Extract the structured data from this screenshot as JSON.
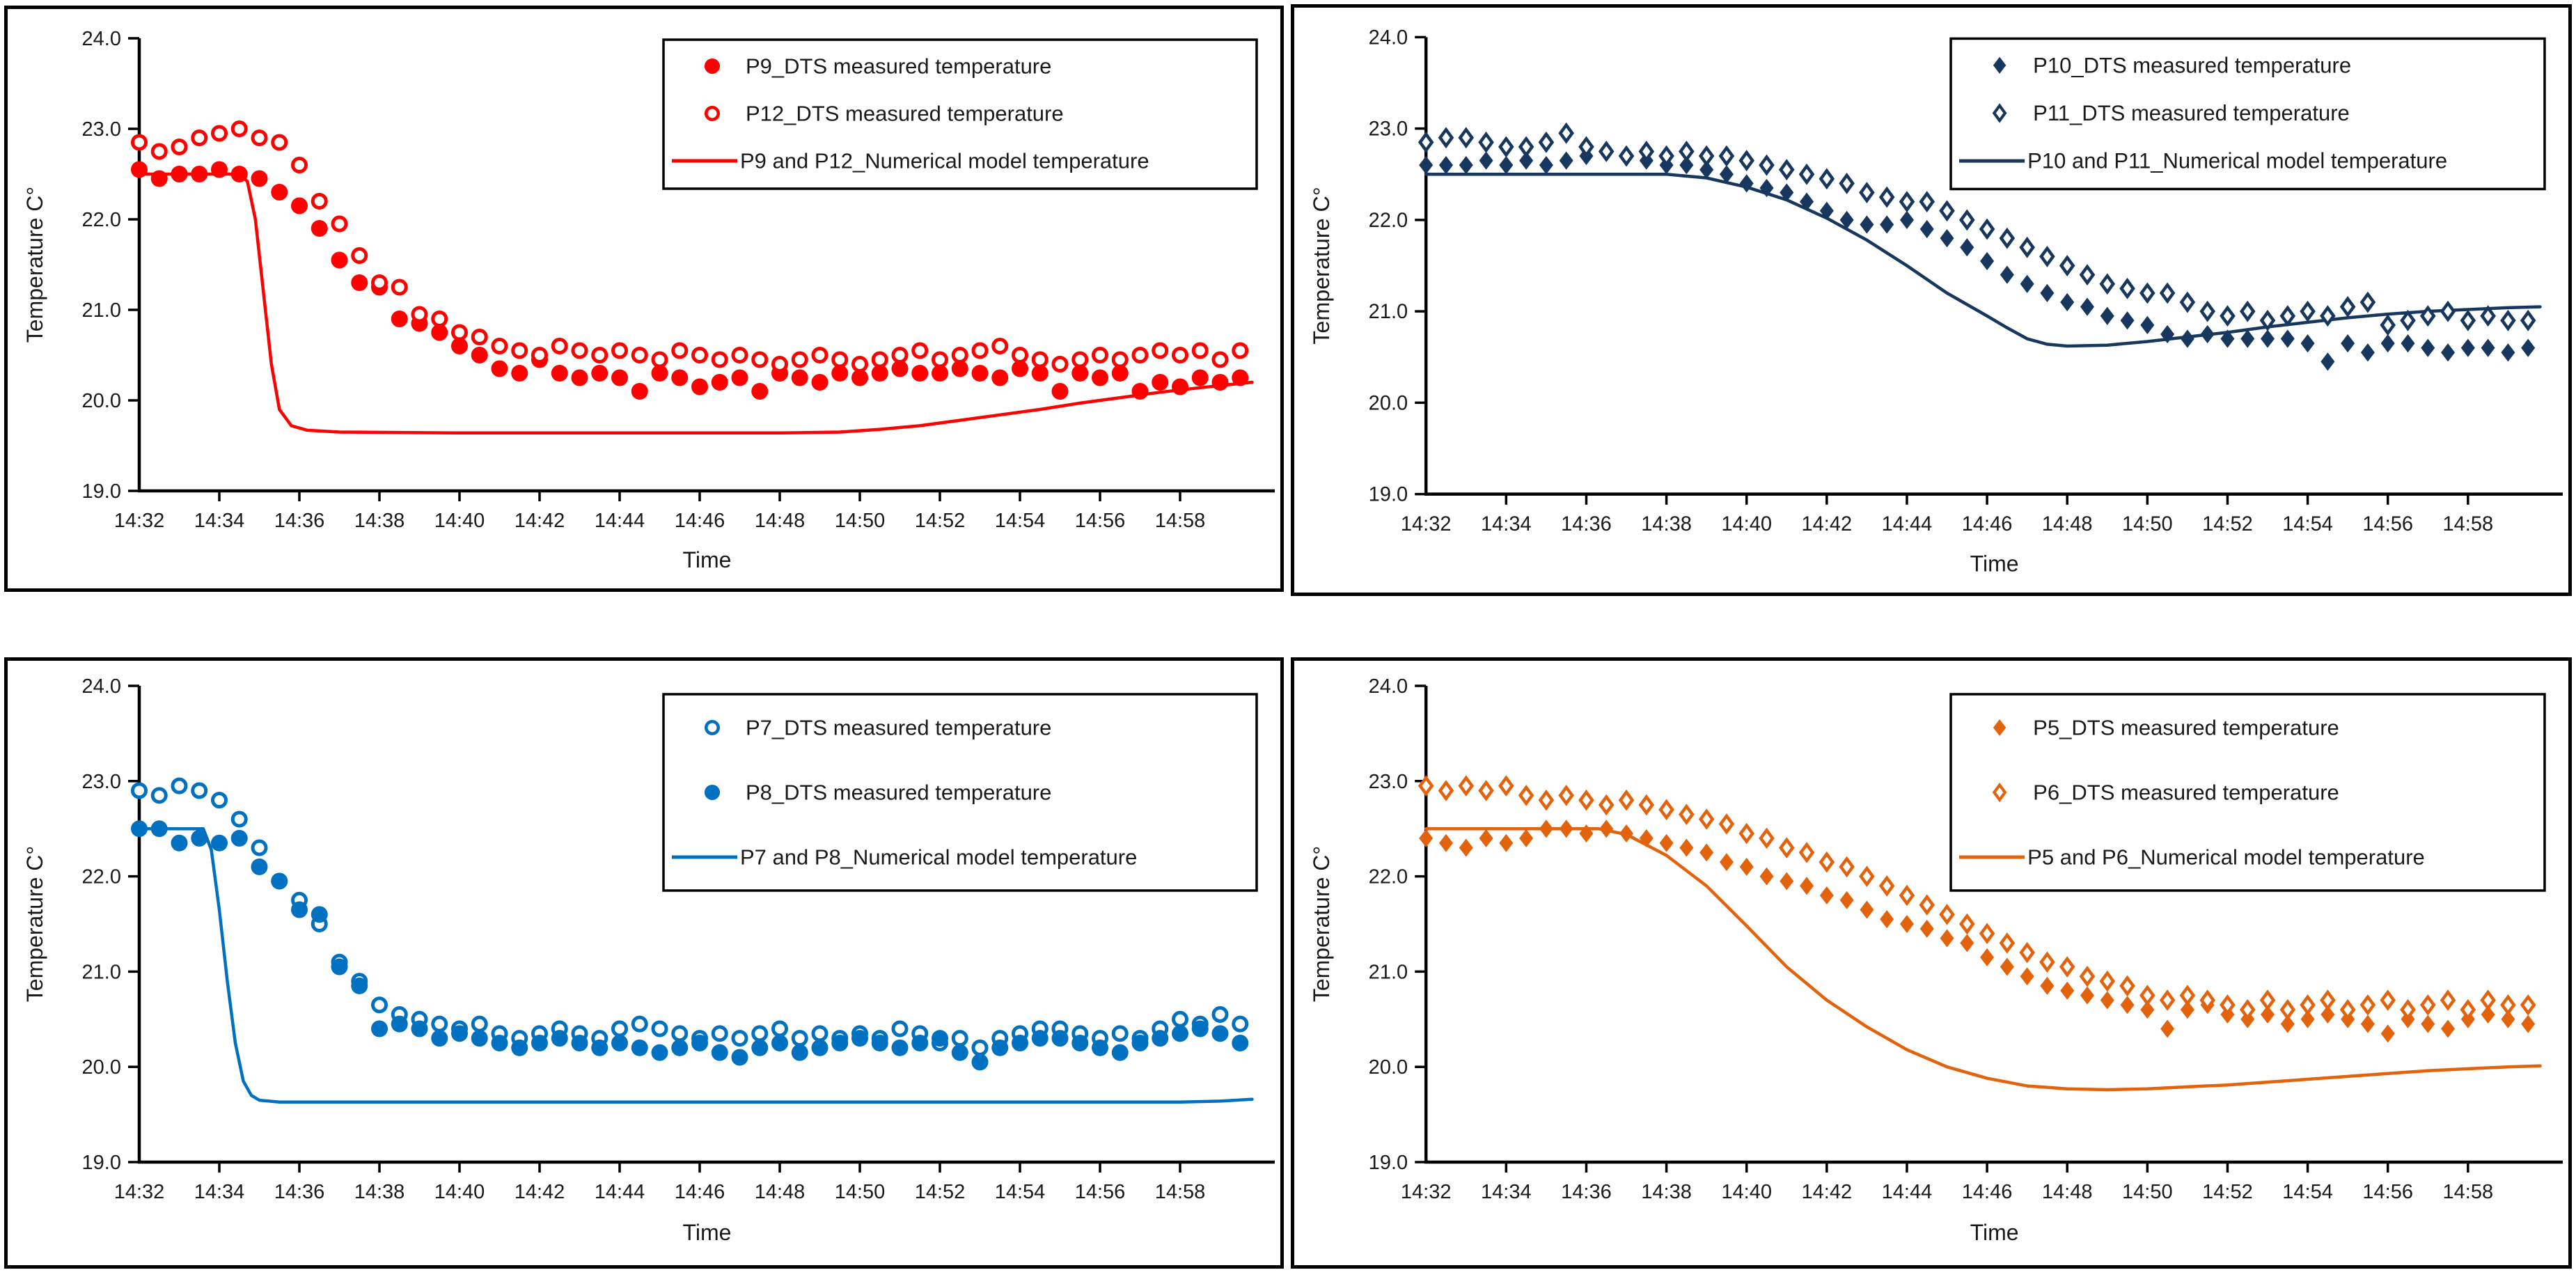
{
  "figure": {
    "background": "#FFFFFF",
    "x_axis_title": "Time",
    "y_axis_title": "Temperature C°",
    "x_tick_labels": [
      "14:32",
      "14:34",
      "14:36",
      "14:38",
      "14:40",
      "14:42",
      "14:44",
      "14:46",
      "14:48",
      "14:50",
      "14:52",
      "14:54",
      "14:56",
      "14:58"
    ],
    "y_tick_labels": [
      "19.0",
      "20.0",
      "21.0",
      "22.0",
      "23.0",
      "24.0"
    ],
    "ylim": [
      19.0,
      24.0
    ],
    "x_tick_interval_minutes": 2,
    "x_start_minutes": 0,
    "sample_step_minutes": 0.5
  },
  "chart_data": [
    {
      "id": "p9-p12",
      "position": "top-left",
      "type": "scatter",
      "marker_shape": "circle",
      "color": "#FF0000",
      "xlabel": "Time",
      "ylabel": "Temperature C°",
      "ylim": [
        19.0,
        24.0
      ],
      "legend_position": "top-right",
      "series": [
        {
          "name": "P9_DTS measured temperature",
          "style": "filled",
          "t_start": 0,
          "t_step": 0.5,
          "values": [
            22.55,
            22.45,
            22.5,
            22.5,
            22.55,
            22.5,
            22.45,
            22.3,
            22.15,
            21.9,
            21.55,
            21.3,
            21.25,
            20.9,
            20.85,
            20.75,
            20.6,
            20.5,
            20.35,
            20.3,
            20.45,
            20.3,
            20.25,
            20.3,
            20.25,
            20.1,
            20.3,
            20.25,
            20.15,
            20.2,
            20.25,
            20.1,
            20.3,
            20.25,
            20.2,
            20.3,
            20.25,
            20.3,
            20.35,
            20.3,
            20.3,
            20.35,
            20.3,
            20.25,
            20.35,
            20.3,
            20.1,
            20.3,
            20.25,
            20.3,
            20.1,
            20.2,
            20.15,
            20.25,
            20.2,
            20.25
          ]
        },
        {
          "name": "P12_DTS measured temperature",
          "style": "open",
          "t_start": 0,
          "t_step": 0.5,
          "values": [
            22.85,
            22.75,
            22.8,
            22.9,
            22.95,
            23.0,
            22.9,
            22.85,
            22.6,
            22.2,
            21.95,
            21.6,
            21.3,
            21.25,
            20.95,
            20.9,
            20.75,
            20.7,
            20.6,
            20.55,
            20.5,
            20.6,
            20.55,
            20.5,
            20.55,
            20.5,
            20.45,
            20.55,
            20.5,
            20.45,
            20.5,
            20.45,
            20.4,
            20.45,
            20.5,
            20.45,
            20.4,
            20.45,
            20.5,
            20.55,
            20.45,
            20.5,
            20.55,
            20.6,
            20.5,
            20.45,
            20.4,
            20.45,
            20.5,
            20.45,
            20.5,
            20.55,
            20.5,
            20.55,
            20.45,
            20.55
          ]
        },
        {
          "name": "P9 and P12_Numerical model temperature",
          "style": "line",
          "points": [
            [
              0,
              22.5
            ],
            [
              2.5,
              22.5
            ],
            [
              2.7,
              22.42
            ],
            [
              2.9,
              22.0
            ],
            [
              3.1,
              21.2
            ],
            [
              3.3,
              20.4
            ],
            [
              3.5,
              19.9
            ],
            [
              3.8,
              19.72
            ],
            [
              4.2,
              19.67
            ],
            [
              5,
              19.65
            ],
            [
              8,
              19.64
            ],
            [
              12,
              19.64
            ],
            [
              16,
              19.64
            ],
            [
              17.5,
              19.65
            ],
            [
              18.5,
              19.68
            ],
            [
              19.5,
              19.72
            ],
            [
              20.5,
              19.78
            ],
            [
              21.5,
              19.84
            ],
            [
              22.5,
              19.9
            ],
            [
              23.5,
              19.97
            ],
            [
              24.5,
              20.03
            ],
            [
              25.5,
              20.09
            ],
            [
              26.5,
              20.14
            ],
            [
              27.8,
              20.2
            ]
          ]
        }
      ]
    },
    {
      "id": "p10-p11",
      "position": "top-right",
      "type": "scatter",
      "marker_shape": "diamond",
      "color": "#17375E",
      "xlabel": "Time",
      "ylabel": "Temperature C°",
      "ylim": [
        19.0,
        24.0
      ],
      "legend_position": "top-right",
      "series": [
        {
          "name": "P10_DTS measured temperature",
          "style": "filled",
          "t_start": 0,
          "t_step": 0.5,
          "values": [
            22.6,
            22.6,
            22.6,
            22.65,
            22.6,
            22.65,
            22.6,
            22.65,
            22.7,
            22.75,
            22.7,
            22.65,
            22.6,
            22.6,
            22.55,
            22.5,
            22.4,
            22.35,
            22.3,
            22.2,
            22.1,
            22.0,
            21.95,
            21.95,
            22.0,
            21.9,
            21.8,
            21.7,
            21.55,
            21.4,
            21.3,
            21.2,
            21.1,
            21.05,
            20.95,
            20.9,
            20.85,
            20.75,
            20.7,
            20.75,
            20.7,
            20.7,
            20.7,
            20.7,
            20.65,
            20.45,
            20.65,
            20.55,
            20.65,
            20.65,
            20.6,
            20.55,
            20.6,
            20.6,
            20.55,
            20.6
          ]
        },
        {
          "name": "P11_DTS measured temperature",
          "style": "open",
          "t_start": 0,
          "t_step": 0.5,
          "values": [
            22.85,
            22.9,
            22.9,
            22.85,
            22.8,
            22.8,
            22.85,
            22.95,
            22.8,
            22.75,
            22.7,
            22.75,
            22.7,
            22.75,
            22.7,
            22.7,
            22.65,
            22.6,
            22.55,
            22.5,
            22.45,
            22.4,
            22.3,
            22.25,
            22.2,
            22.2,
            22.1,
            22.0,
            21.9,
            21.8,
            21.7,
            21.6,
            21.5,
            21.4,
            21.3,
            21.25,
            21.2,
            21.2,
            21.1,
            21.0,
            20.95,
            21.0,
            20.9,
            20.95,
            21.0,
            20.95,
            21.05,
            21.1,
            20.85,
            20.9,
            20.95,
            21.0,
            20.9,
            20.95,
            20.9,
            20.9
          ]
        },
        {
          "name": "P10 and P11_Numerical model temperature",
          "style": "line",
          "points": [
            [
              0,
              22.5
            ],
            [
              6,
              22.5
            ],
            [
              7,
              22.46
            ],
            [
              8,
              22.36
            ],
            [
              9,
              22.22
            ],
            [
              10,
              22.02
            ],
            [
              11,
              21.78
            ],
            [
              12,
              21.5
            ],
            [
              13,
              21.2
            ],
            [
              14,
              20.95
            ],
            [
              14.5,
              20.82
            ],
            [
              15,
              20.7
            ],
            [
              15.5,
              20.64
            ],
            [
              16,
              20.62
            ],
            [
              17,
              20.63
            ],
            [
              18,
              20.67
            ],
            [
              19,
              20.72
            ],
            [
              20,
              20.77
            ],
            [
              21,
              20.83
            ],
            [
              22,
              20.88
            ],
            [
              23,
              20.93
            ],
            [
              24,
              20.97
            ],
            [
              25,
              21.0
            ],
            [
              26,
              21.02
            ],
            [
              27,
              21.04
            ],
            [
              27.8,
              21.05
            ]
          ]
        }
      ]
    },
    {
      "id": "p7-p8",
      "position": "bottom-left",
      "type": "scatter",
      "marker_shape": "circle",
      "color": "#0070C0",
      "xlabel": "Time",
      "ylabel": "Temperature C°",
      "ylim": [
        19.0,
        24.0
      ],
      "legend_position": "top-right",
      "series": [
        {
          "name": "P7_DTS measured temperature",
          "style": "open",
          "t_start": 0,
          "t_step": 0.5,
          "values": [
            22.9,
            22.85,
            22.95,
            22.9,
            22.8,
            22.6,
            22.3,
            21.95,
            21.75,
            21.5,
            21.1,
            20.9,
            20.65,
            20.55,
            20.5,
            20.45,
            20.4,
            20.45,
            20.35,
            20.3,
            20.35,
            20.4,
            20.35,
            20.3,
            20.4,
            20.45,
            20.4,
            20.35,
            20.3,
            20.35,
            20.3,
            20.35,
            20.4,
            20.3,
            20.35,
            20.3,
            20.35,
            20.3,
            20.4,
            20.35,
            20.25,
            20.3,
            20.2,
            20.3,
            20.35,
            20.4,
            20.4,
            20.35,
            20.3,
            20.35,
            20.3,
            20.4,
            20.5,
            20.45,
            20.55,
            20.45
          ]
        },
        {
          "name": "P8_DTS measured temperature",
          "style": "filled",
          "t_start": 0,
          "t_step": 0.5,
          "values": [
            22.5,
            22.5,
            22.35,
            22.4,
            22.35,
            22.4,
            22.1,
            21.95,
            21.65,
            21.6,
            21.05,
            20.85,
            20.4,
            20.45,
            20.4,
            20.3,
            20.35,
            20.3,
            20.25,
            20.2,
            20.25,
            20.3,
            20.25,
            20.2,
            20.25,
            20.2,
            20.15,
            20.2,
            20.25,
            20.15,
            20.1,
            20.2,
            20.25,
            20.15,
            20.2,
            20.25,
            20.3,
            20.25,
            20.2,
            20.25,
            20.3,
            20.15,
            20.05,
            20.2,
            20.25,
            20.3,
            20.3,
            20.25,
            20.2,
            20.15,
            20.25,
            20.3,
            20.35,
            20.4,
            20.35,
            20.25
          ]
        },
        {
          "name": "P7 and P8_Numerical model temperature",
          "style": "line",
          "points": [
            [
              0,
              22.5
            ],
            [
              1.6,
              22.5
            ],
            [
              1.8,
              22.28
            ],
            [
              2.0,
              21.65
            ],
            [
              2.2,
              20.9
            ],
            [
              2.4,
              20.25
            ],
            [
              2.6,
              19.85
            ],
            [
              2.8,
              19.7
            ],
            [
              3.0,
              19.65
            ],
            [
              3.5,
              19.63
            ],
            [
              8,
              19.63
            ],
            [
              14,
              19.63
            ],
            [
              20,
              19.63
            ],
            [
              26,
              19.63
            ],
            [
              27,
              19.64
            ],
            [
              27.8,
              19.66
            ]
          ]
        }
      ]
    },
    {
      "id": "p5-p6",
      "position": "bottom-right",
      "type": "scatter",
      "marker_shape": "diamond",
      "color": "#E3620C",
      "xlabel": "Time",
      "ylabel": "Temperature C°",
      "ylim": [
        19.0,
        24.0
      ],
      "legend_position": "top-right",
      "series": [
        {
          "name": "P5_DTS measured temperature",
          "style": "filled",
          "t_start": 0,
          "t_step": 0.5,
          "values": [
            22.4,
            22.35,
            22.3,
            22.4,
            22.35,
            22.4,
            22.5,
            22.5,
            22.45,
            22.5,
            22.45,
            22.4,
            22.35,
            22.3,
            22.25,
            22.15,
            22.1,
            22.0,
            21.95,
            21.9,
            21.8,
            21.75,
            21.65,
            21.55,
            21.5,
            21.45,
            21.35,
            21.3,
            21.15,
            21.05,
            20.95,
            20.85,
            20.8,
            20.75,
            20.7,
            20.65,
            20.6,
            20.4,
            20.6,
            20.65,
            20.55,
            20.5,
            20.55,
            20.45,
            20.5,
            20.55,
            20.5,
            20.45,
            20.35,
            20.5,
            20.45,
            20.4,
            20.5,
            20.55,
            20.5,
            20.45
          ]
        },
        {
          "name": "P6_DTS measured temperature",
          "style": "open",
          "t_start": 0,
          "t_step": 0.5,
          "values": [
            22.95,
            22.9,
            22.95,
            22.9,
            22.95,
            22.85,
            22.8,
            22.85,
            22.8,
            22.75,
            22.8,
            22.75,
            22.7,
            22.65,
            22.6,
            22.55,
            22.45,
            22.4,
            22.3,
            22.25,
            22.15,
            22.1,
            22.0,
            21.9,
            21.8,
            21.7,
            21.6,
            21.5,
            21.4,
            21.3,
            21.2,
            21.1,
            21.05,
            20.95,
            20.9,
            20.85,
            20.75,
            20.7,
            20.75,
            20.7,
            20.65,
            20.6,
            20.7,
            20.6,
            20.65,
            20.7,
            20.6,
            20.65,
            20.7,
            20.6,
            20.65,
            20.7,
            20.6,
            20.7,
            20.65,
            20.65
          ]
        },
        {
          "name": "P5 and P6_Numerical model temperature",
          "style": "line",
          "points": [
            [
              0,
              22.5
            ],
            [
              4.3,
              22.5
            ],
            [
              5,
              22.44
            ],
            [
              6,
              22.22
            ],
            [
              7,
              21.9
            ],
            [
              8,
              21.48
            ],
            [
              9,
              21.05
            ],
            [
              10,
              20.7
            ],
            [
              11,
              20.42
            ],
            [
              12,
              20.18
            ],
            [
              13,
              20.0
            ],
            [
              14,
              19.88
            ],
            [
              15,
              19.8
            ],
            [
              16,
              19.77
            ],
            [
              17,
              19.76
            ],
            [
              18,
              19.77
            ],
            [
              19,
              19.79
            ],
            [
              20,
              19.81
            ],
            [
              21,
              19.84
            ],
            [
              22,
              19.87
            ],
            [
              23,
              19.9
            ],
            [
              24,
              19.93
            ],
            [
              25,
              19.96
            ],
            [
              26,
              19.98
            ],
            [
              27,
              20.0
            ],
            [
              27.8,
              20.01
            ]
          ]
        }
      ]
    }
  ]
}
